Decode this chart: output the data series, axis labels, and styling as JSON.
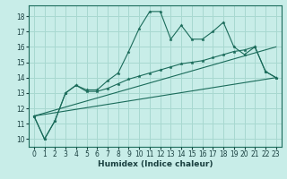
{
  "xlabel": "Humidex (Indice chaleur)",
  "bg_color": "#c8ede8",
  "grid_color": "#a8d8d0",
  "line_color": "#1a6b5a",
  "xlim": [
    -0.5,
    23.5
  ],
  "ylim": [
    9.5,
    18.7
  ],
  "xticks": [
    0,
    1,
    2,
    3,
    4,
    5,
    6,
    7,
    8,
    9,
    10,
    11,
    12,
    13,
    14,
    15,
    16,
    17,
    18,
    19,
    20,
    21,
    22,
    23
  ],
  "yticks": [
    10,
    11,
    12,
    13,
    14,
    15,
    16,
    17,
    18
  ],
  "line1_x": [
    0,
    1,
    2,
    3,
    4,
    5,
    6,
    7,
    8,
    9,
    10,
    11,
    12,
    13,
    14,
    15,
    16,
    17,
    18,
    19,
    20,
    21,
    22,
    23
  ],
  "line1_y": [
    11.5,
    10.0,
    11.2,
    13.0,
    13.5,
    13.2,
    13.2,
    13.8,
    14.3,
    15.7,
    17.2,
    18.3,
    18.3,
    16.5,
    17.4,
    16.5,
    16.5,
    17.0,
    17.6,
    16.0,
    15.5,
    16.0,
    14.4,
    14.0
  ],
  "line2_x": [
    0,
    1,
    2,
    3,
    4,
    5,
    6,
    7,
    8,
    9,
    10,
    11,
    12,
    13,
    14,
    15,
    16,
    17,
    18,
    19,
    20,
    21,
    22,
    23
  ],
  "line2_y": [
    11.5,
    10.0,
    11.2,
    13.0,
    13.5,
    13.1,
    13.1,
    13.3,
    13.6,
    13.9,
    14.1,
    14.3,
    14.5,
    14.7,
    14.9,
    15.0,
    15.1,
    15.3,
    15.5,
    15.7,
    15.8,
    16.0,
    14.4,
    14.0
  ],
  "line3_x": [
    0,
    23
  ],
  "line3_y": [
    11.5,
    16.0
  ],
  "line4_x": [
    0,
    23
  ],
  "line4_y": [
    11.5,
    14.0
  ]
}
